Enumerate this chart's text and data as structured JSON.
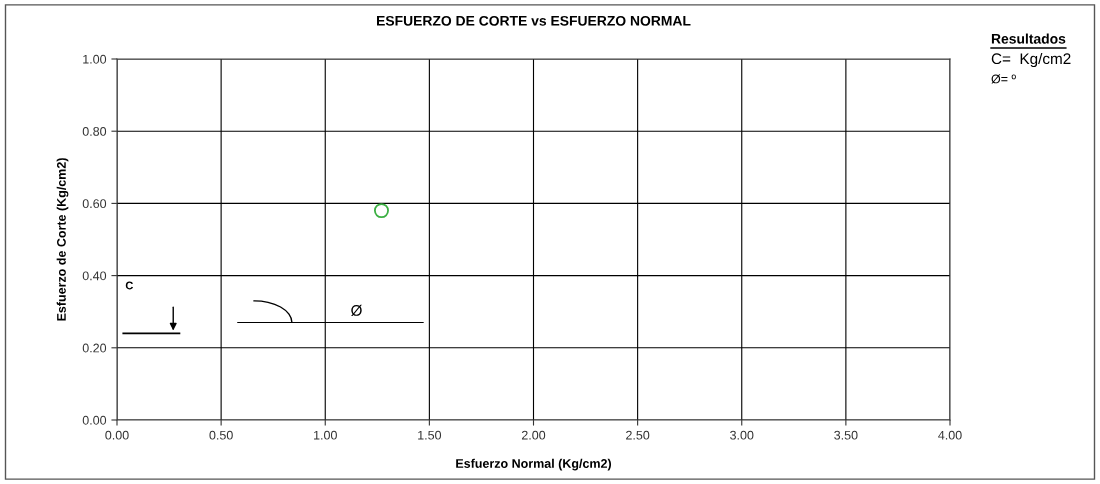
{
  "chart_data": {
    "type": "scatter",
    "title": "ESFUERZO DE CORTE vs ESFUERZO NORMAL",
    "xlabel": "Esfuerzo Normal (Kg/cm2)",
    "ylabel": "Esfuerzo de Corte (Kg/cm2)",
    "x": [
      1.27
    ],
    "series": [
      {
        "color": "#3cb043",
        "values": [
          0.58
        ]
      }
    ],
    "marker": "circle",
    "grid": true,
    "xlim": [
      0,
      4
    ],
    "ylim": [
      0,
      1
    ],
    "xticks": [
      {
        "value": 0,
        "label": "0.00"
      },
      {
        "value": 0.5,
        "label": "0.50"
      },
      {
        "value": 1,
        "label": "1.00"
      },
      {
        "value": 1.5,
        "label": "1.50"
      },
      {
        "value": 2,
        "label": "2.00"
      },
      {
        "value": 2.5,
        "label": "2.50"
      },
      {
        "value": 3,
        "label": "3.00"
      },
      {
        "value": 3.5,
        "label": "3.50"
      },
      {
        "value": 4,
        "label": "4.00"
      }
    ],
    "yticks": [
      {
        "value": 0,
        "label": "0.00"
      },
      {
        "value": 0.2,
        "label": "0.20"
      },
      {
        "value": 0.4,
        "label": "0.40"
      },
      {
        "value": 0.6,
        "label": "0.60"
      },
      {
        "value": 0.8,
        "label": "0.80"
      },
      {
        "value": 1,
        "label": "1.00"
      }
    ],
    "annotations": [
      "C",
      "Ø",
      "Resultados",
      "C=  Kg/cm2",
      "Ø= º"
    ]
  }
}
